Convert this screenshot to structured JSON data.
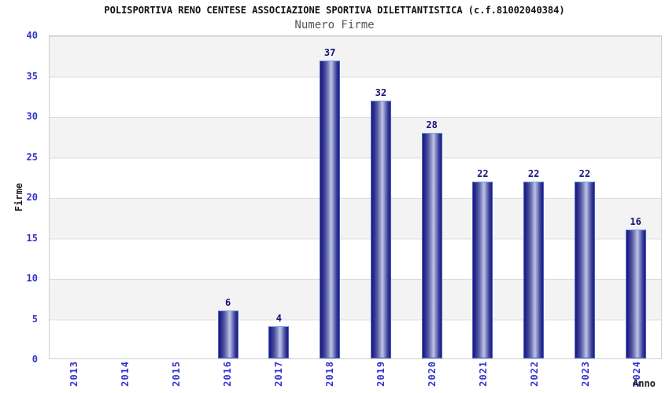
{
  "chart_data": {
    "type": "bar",
    "title": "POLISPORTIVA RENO CENTESE ASSOCIAZIONE SPORTIVA DILETTANTISTICA (c.f.81002040384)",
    "subtitle": "Numero Firme",
    "xlabel": "Anno",
    "ylabel": "Firme",
    "categories": [
      "2013",
      "2014",
      "2015",
      "2016",
      "2017",
      "2018",
      "2019",
      "2020",
      "2021",
      "2022",
      "2023",
      "2024"
    ],
    "values": [
      0,
      0,
      0,
      6,
      4,
      37,
      32,
      28,
      22,
      22,
      22,
      16
    ],
    "ylim": [
      0,
      40
    ],
    "yticks": [
      0,
      5,
      10,
      15,
      20,
      25,
      30,
      35,
      40
    ],
    "grid": "horizontal gridlines every 5 units with alternating gray/white bands",
    "legend_position": "none",
    "colors": {
      "bar_dark": "#1c1c78",
      "bar_mid": "#26268e",
      "bar_highlight": "#c2c6e4",
      "bar_border": "#4a5fc8",
      "bar_border_top": "#74a6e8",
      "tick_label_blue": "#3333cc",
      "value_label_navy": "#14147a",
      "band_gray": "#f3f3f3",
      "band_white": "#ffffff",
      "gridline": "#dcdcdc",
      "plot_border": "#d0d0d0",
      "title_color": "#111111",
      "subtitle_color": "#555555",
      "axis_title_color": "#222222"
    }
  }
}
